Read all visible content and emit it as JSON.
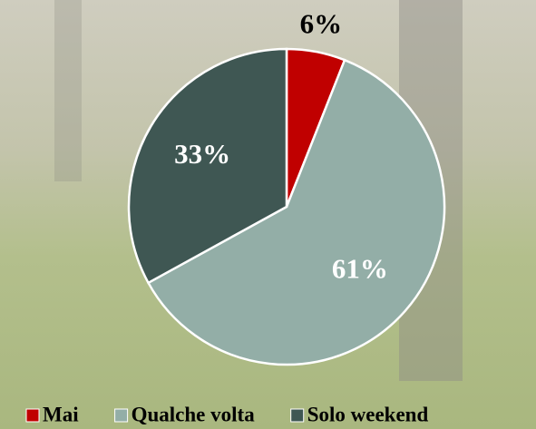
{
  "chart_data": {
    "type": "pie",
    "categories": [
      "Mai",
      "Qualche volta",
      "Solo weekend"
    ],
    "values": [
      6,
      61,
      33
    ],
    "value_labels": [
      "6%",
      "61%",
      "33%"
    ],
    "colors": [
      "#c00000",
      "#93aea7",
      "#3f5753"
    ],
    "legend": "bottom"
  }
}
